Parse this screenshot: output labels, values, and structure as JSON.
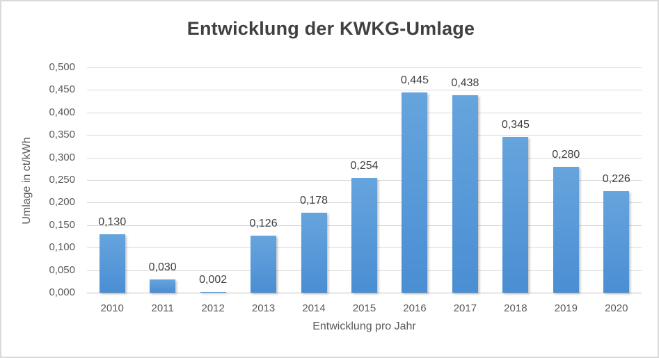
{
  "chart_data": {
    "type": "bar",
    "title": "Entwicklung der KWKG-Umlage",
    "xlabel": "Entwicklung pro Jahr",
    "ylabel": "Umlage in ct/kWh",
    "categories": [
      "2010",
      "2011",
      "2012",
      "2013",
      "2014",
      "2015",
      "2016",
      "2017",
      "2018",
      "2019",
      "2020"
    ],
    "values": [
      0.13,
      0.03,
      0.002,
      0.126,
      0.178,
      0.254,
      0.445,
      0.438,
      0.345,
      0.28,
      0.226
    ],
    "value_labels": [
      "0,130",
      "0,030",
      "0,002",
      "0,126",
      "0,178",
      "0,254",
      "0,445",
      "0,438",
      "0,345",
      "0,280",
      "0,226"
    ],
    "ylim": [
      0,
      0.5
    ],
    "ytick_values": [
      0.0,
      0.05,
      0.1,
      0.15,
      0.2,
      0.25,
      0.3,
      0.35,
      0.4,
      0.45,
      0.5
    ],
    "ytick_labels": [
      "0,000",
      "0,050",
      "0,100",
      "0,150",
      "0,200",
      "0,250",
      "0,300",
      "0,350",
      "0,400",
      "0,450",
      "0,500"
    ],
    "grid": true,
    "legend": "none",
    "colors": {
      "bar_gradient_top": "#66a4dd",
      "bar_gradient_bottom": "#4a8ed3",
      "gridline": "#d9d9d9",
      "axis_line": "#bfbfbf",
      "title_text": "#404040",
      "value_label_text": "#404040",
      "tick_text": "#595959",
      "axis_title_text": "#595959",
      "background": "#ffffff",
      "border": "#d9d9d9"
    }
  }
}
